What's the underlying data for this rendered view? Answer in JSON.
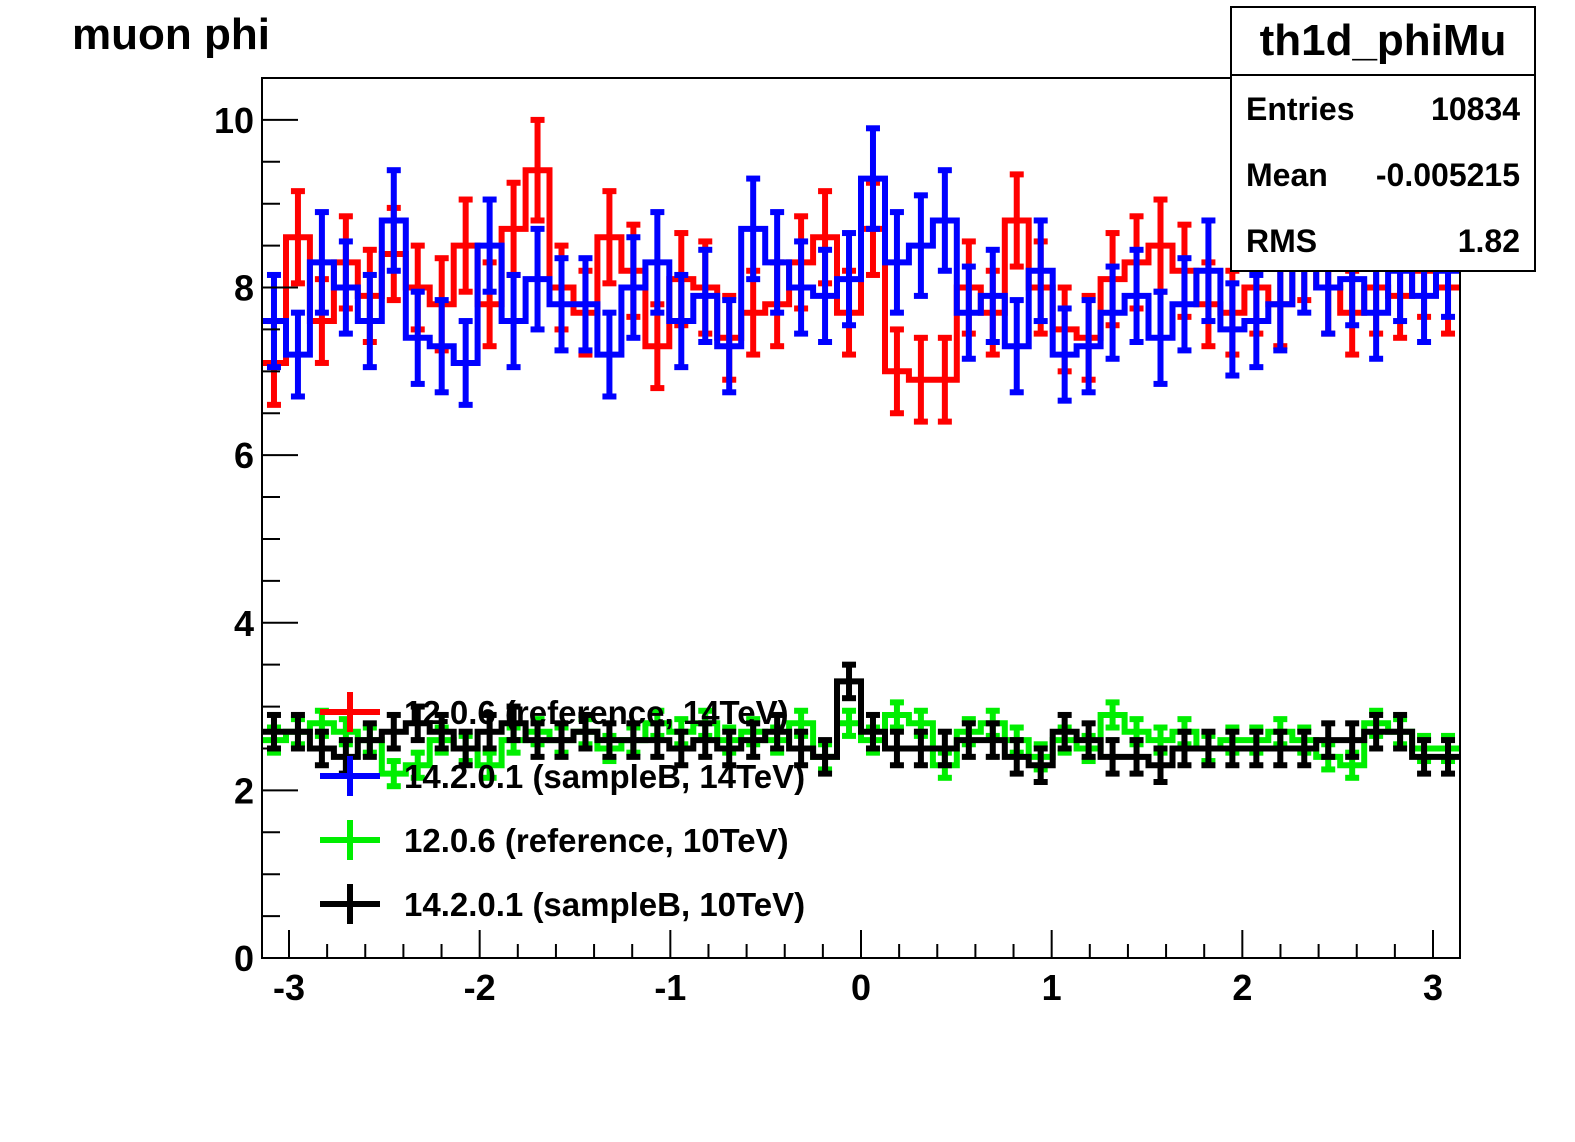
{
  "title": "muon phi",
  "stats": {
    "name": "th1d_phiMu",
    "rows": [
      {
        "label": "Entries",
        "value": "10834"
      },
      {
        "label": "Mean",
        "value": "-0.005215"
      },
      {
        "label": "RMS",
        "value": "1.82"
      }
    ]
  },
  "chart_data": {
    "type": "line",
    "title": "muon phi",
    "xlabel": "",
    "ylabel": "",
    "xlim": [
      -3.1416,
      3.1416
    ],
    "ylim": [
      0,
      10.5
    ],
    "x_ticks": [
      -3,
      -2,
      -1,
      0,
      1,
      2,
      3
    ],
    "x_tick_labels": [
      "-3",
      "-2",
      "-1",
      "0",
      "1",
      "2",
      "3"
    ],
    "y_ticks": [
      0,
      2,
      4,
      6,
      8,
      10
    ],
    "y_tick_labels": [
      "0",
      "2",
      "4",
      "6",
      "8",
      "10"
    ],
    "n_bins": 50,
    "grid": false,
    "legend_position": "bottom-left",
    "series": [
      {
        "name": "12.0.6 (reference, 14TeV)",
        "color": "#ff0000",
        "values": [
          7.1,
          8.6,
          7.6,
          8.3,
          7.9,
          8.4,
          8.0,
          7.8,
          8.5,
          7.8,
          8.7,
          9.4,
          8.0,
          7.7,
          8.6,
          8.2,
          7.3,
          8.1,
          8.0,
          7.4,
          7.7,
          7.8,
          8.3,
          8.6,
          7.7,
          8.7,
          7.0,
          6.9,
          6.9,
          8.0,
          7.7,
          8.8,
          8.0,
          7.5,
          7.4,
          8.1,
          8.3,
          8.5,
          8.2,
          7.8,
          7.7,
          8.0,
          7.8,
          8.4,
          8.0,
          7.7,
          8.0,
          7.9,
          8.2,
          8.0
        ],
        "errors": [
          0.5,
          0.55,
          0.5,
          0.55,
          0.55,
          0.55,
          0.5,
          0.55,
          0.55,
          0.5,
          0.55,
          0.6,
          0.5,
          0.5,
          0.55,
          0.55,
          0.5,
          0.55,
          0.55,
          0.5,
          0.5,
          0.5,
          0.55,
          0.55,
          0.5,
          0.55,
          0.5,
          0.5,
          0.5,
          0.55,
          0.5,
          0.55,
          0.55,
          0.5,
          0.5,
          0.55,
          0.55,
          0.55,
          0.55,
          0.5,
          0.5,
          0.55,
          0.5,
          0.55,
          0.55,
          0.5,
          0.55,
          0.5,
          0.55,
          0.55
        ]
      },
      {
        "name": "14.2.0.1 (sampleB, 14TeV)",
        "color": "#0000ff",
        "values": [
          7.6,
          7.2,
          8.3,
          8.0,
          7.6,
          8.8,
          7.4,
          7.3,
          7.1,
          8.5,
          7.6,
          8.1,
          7.8,
          7.8,
          7.2,
          8.0,
          8.3,
          7.6,
          7.9,
          7.3,
          8.7,
          8.3,
          8.0,
          7.9,
          8.1,
          9.3,
          8.3,
          8.5,
          8.8,
          7.7,
          7.9,
          7.3,
          8.2,
          7.2,
          7.3,
          7.7,
          7.9,
          7.4,
          7.8,
          8.2,
          7.5,
          7.6,
          7.8,
          8.3,
          8.0,
          8.1,
          7.7,
          8.2,
          7.9,
          8.2
        ],
        "errors": [
          0.55,
          0.5,
          0.6,
          0.55,
          0.55,
          0.6,
          0.55,
          0.55,
          0.5,
          0.55,
          0.55,
          0.6,
          0.55,
          0.55,
          0.5,
          0.6,
          0.6,
          0.55,
          0.55,
          0.55,
          0.6,
          0.6,
          0.55,
          0.55,
          0.55,
          0.6,
          0.6,
          0.6,
          0.6,
          0.55,
          0.55,
          0.55,
          0.6,
          0.55,
          0.55,
          0.55,
          0.55,
          0.55,
          0.55,
          0.6,
          0.55,
          0.55,
          0.55,
          0.6,
          0.55,
          0.55,
          0.55,
          0.6,
          0.55,
          0.55
        ]
      },
      {
        "name": "12.0.6 (reference, 10TeV)",
        "color": "#00ee00",
        "values": [
          2.6,
          2.7,
          2.8,
          2.7,
          2.6,
          2.2,
          2.3,
          2.6,
          2.5,
          2.3,
          2.6,
          2.7,
          2.6,
          2.7,
          2.5,
          2.6,
          2.8,
          2.7,
          2.8,
          2.6,
          2.7,
          2.6,
          2.8,
          2.4,
          2.8,
          2.6,
          2.9,
          2.8,
          2.3,
          2.7,
          2.8,
          2.6,
          2.4,
          2.6,
          2.5,
          2.9,
          2.7,
          2.6,
          2.7,
          2.5,
          2.6,
          2.6,
          2.7,
          2.6,
          2.4,
          2.3,
          2.8,
          2.7,
          2.5,
          2.5
        ],
        "errors": [
          0.15,
          0.15,
          0.15,
          0.15,
          0.15,
          0.15,
          0.15,
          0.15,
          0.15,
          0.15,
          0.15,
          0.15,
          0.15,
          0.15,
          0.15,
          0.15,
          0.15,
          0.15,
          0.15,
          0.15,
          0.15,
          0.15,
          0.15,
          0.15,
          0.15,
          0.15,
          0.15,
          0.15,
          0.15,
          0.15,
          0.15,
          0.15,
          0.15,
          0.15,
          0.15,
          0.15,
          0.15,
          0.15,
          0.15,
          0.15,
          0.15,
          0.15,
          0.15,
          0.15,
          0.15,
          0.15,
          0.15,
          0.15,
          0.15,
          0.15
        ]
      },
      {
        "name": "14.2.0.1 (sampleB, 10TeV)",
        "color": "#000000",
        "values": [
          2.7,
          2.7,
          2.5,
          2.4,
          2.6,
          2.7,
          2.8,
          2.7,
          2.5,
          2.7,
          2.8,
          2.6,
          2.6,
          2.7,
          2.6,
          2.6,
          2.6,
          2.5,
          2.6,
          2.5,
          2.6,
          2.7,
          2.5,
          2.4,
          3.3,
          2.7,
          2.5,
          2.5,
          2.5,
          2.6,
          2.6,
          2.4,
          2.3,
          2.7,
          2.6,
          2.4,
          2.4,
          2.3,
          2.5,
          2.5,
          2.5,
          2.5,
          2.5,
          2.5,
          2.6,
          2.6,
          2.7,
          2.7,
          2.4,
          2.4
        ],
        "errors": [
          0.2,
          0.2,
          0.2,
          0.2,
          0.2,
          0.2,
          0.2,
          0.2,
          0.2,
          0.2,
          0.2,
          0.2,
          0.2,
          0.2,
          0.2,
          0.2,
          0.2,
          0.2,
          0.2,
          0.2,
          0.2,
          0.2,
          0.2,
          0.2,
          0.2,
          0.2,
          0.2,
          0.2,
          0.2,
          0.2,
          0.2,
          0.2,
          0.2,
          0.2,
          0.2,
          0.2,
          0.2,
          0.2,
          0.2,
          0.2,
          0.2,
          0.2,
          0.2,
          0.2,
          0.2,
          0.2,
          0.2,
          0.2,
          0.2,
          0.2
        ]
      }
    ]
  }
}
